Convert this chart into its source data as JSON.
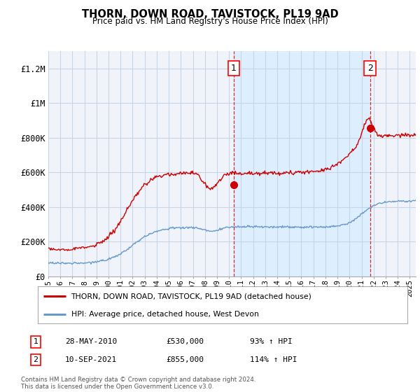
{
  "title": "THORN, DOWN ROAD, TAVISTOCK, PL19 9AD",
  "subtitle": "Price paid vs. HM Land Registry's House Price Index (HPI)",
  "ylabel_ticks": [
    "£0",
    "£200K",
    "£400K",
    "£600K",
    "£800K",
    "£1M",
    "£1.2M"
  ],
  "ytick_values": [
    0,
    200000,
    400000,
    600000,
    800000,
    1000000,
    1200000
  ],
  "ylim": [
    0,
    1300000
  ],
  "xlim_start": 1995,
  "xlim_end": 2025.5,
  "red_line_color": "#cc0000",
  "blue_line_color": "#6699cc",
  "shade_color": "#ddeeff",
  "marker1_x": 2010.4,
  "marker1_y": 530000,
  "marker2_x": 2021.7,
  "marker2_y": 855000,
  "vline1_x": 2010.4,
  "vline2_x": 2021.7,
  "legend_label_red": "THORN, DOWN ROAD, TAVISTOCK, PL19 9AD (detached house)",
  "legend_label_blue": "HPI: Average price, detached house, West Devon",
  "annotation1_label": "1",
  "annotation1_date": "28-MAY-2010",
  "annotation1_price": "£530,000",
  "annotation1_hpi": "93% ↑ HPI",
  "annotation2_label": "2",
  "annotation2_date": "10-SEP-2021",
  "annotation2_price": "£855,000",
  "annotation2_hpi": "114% ↑ HPI",
  "footer": "Contains HM Land Registry data © Crown copyright and database right 2024.\nThis data is licensed under the Open Government Licence v3.0.",
  "background_color": "#ffffff",
  "plot_bg_color": "#f0f4fa",
  "grid_color": "#c8d4e8"
}
